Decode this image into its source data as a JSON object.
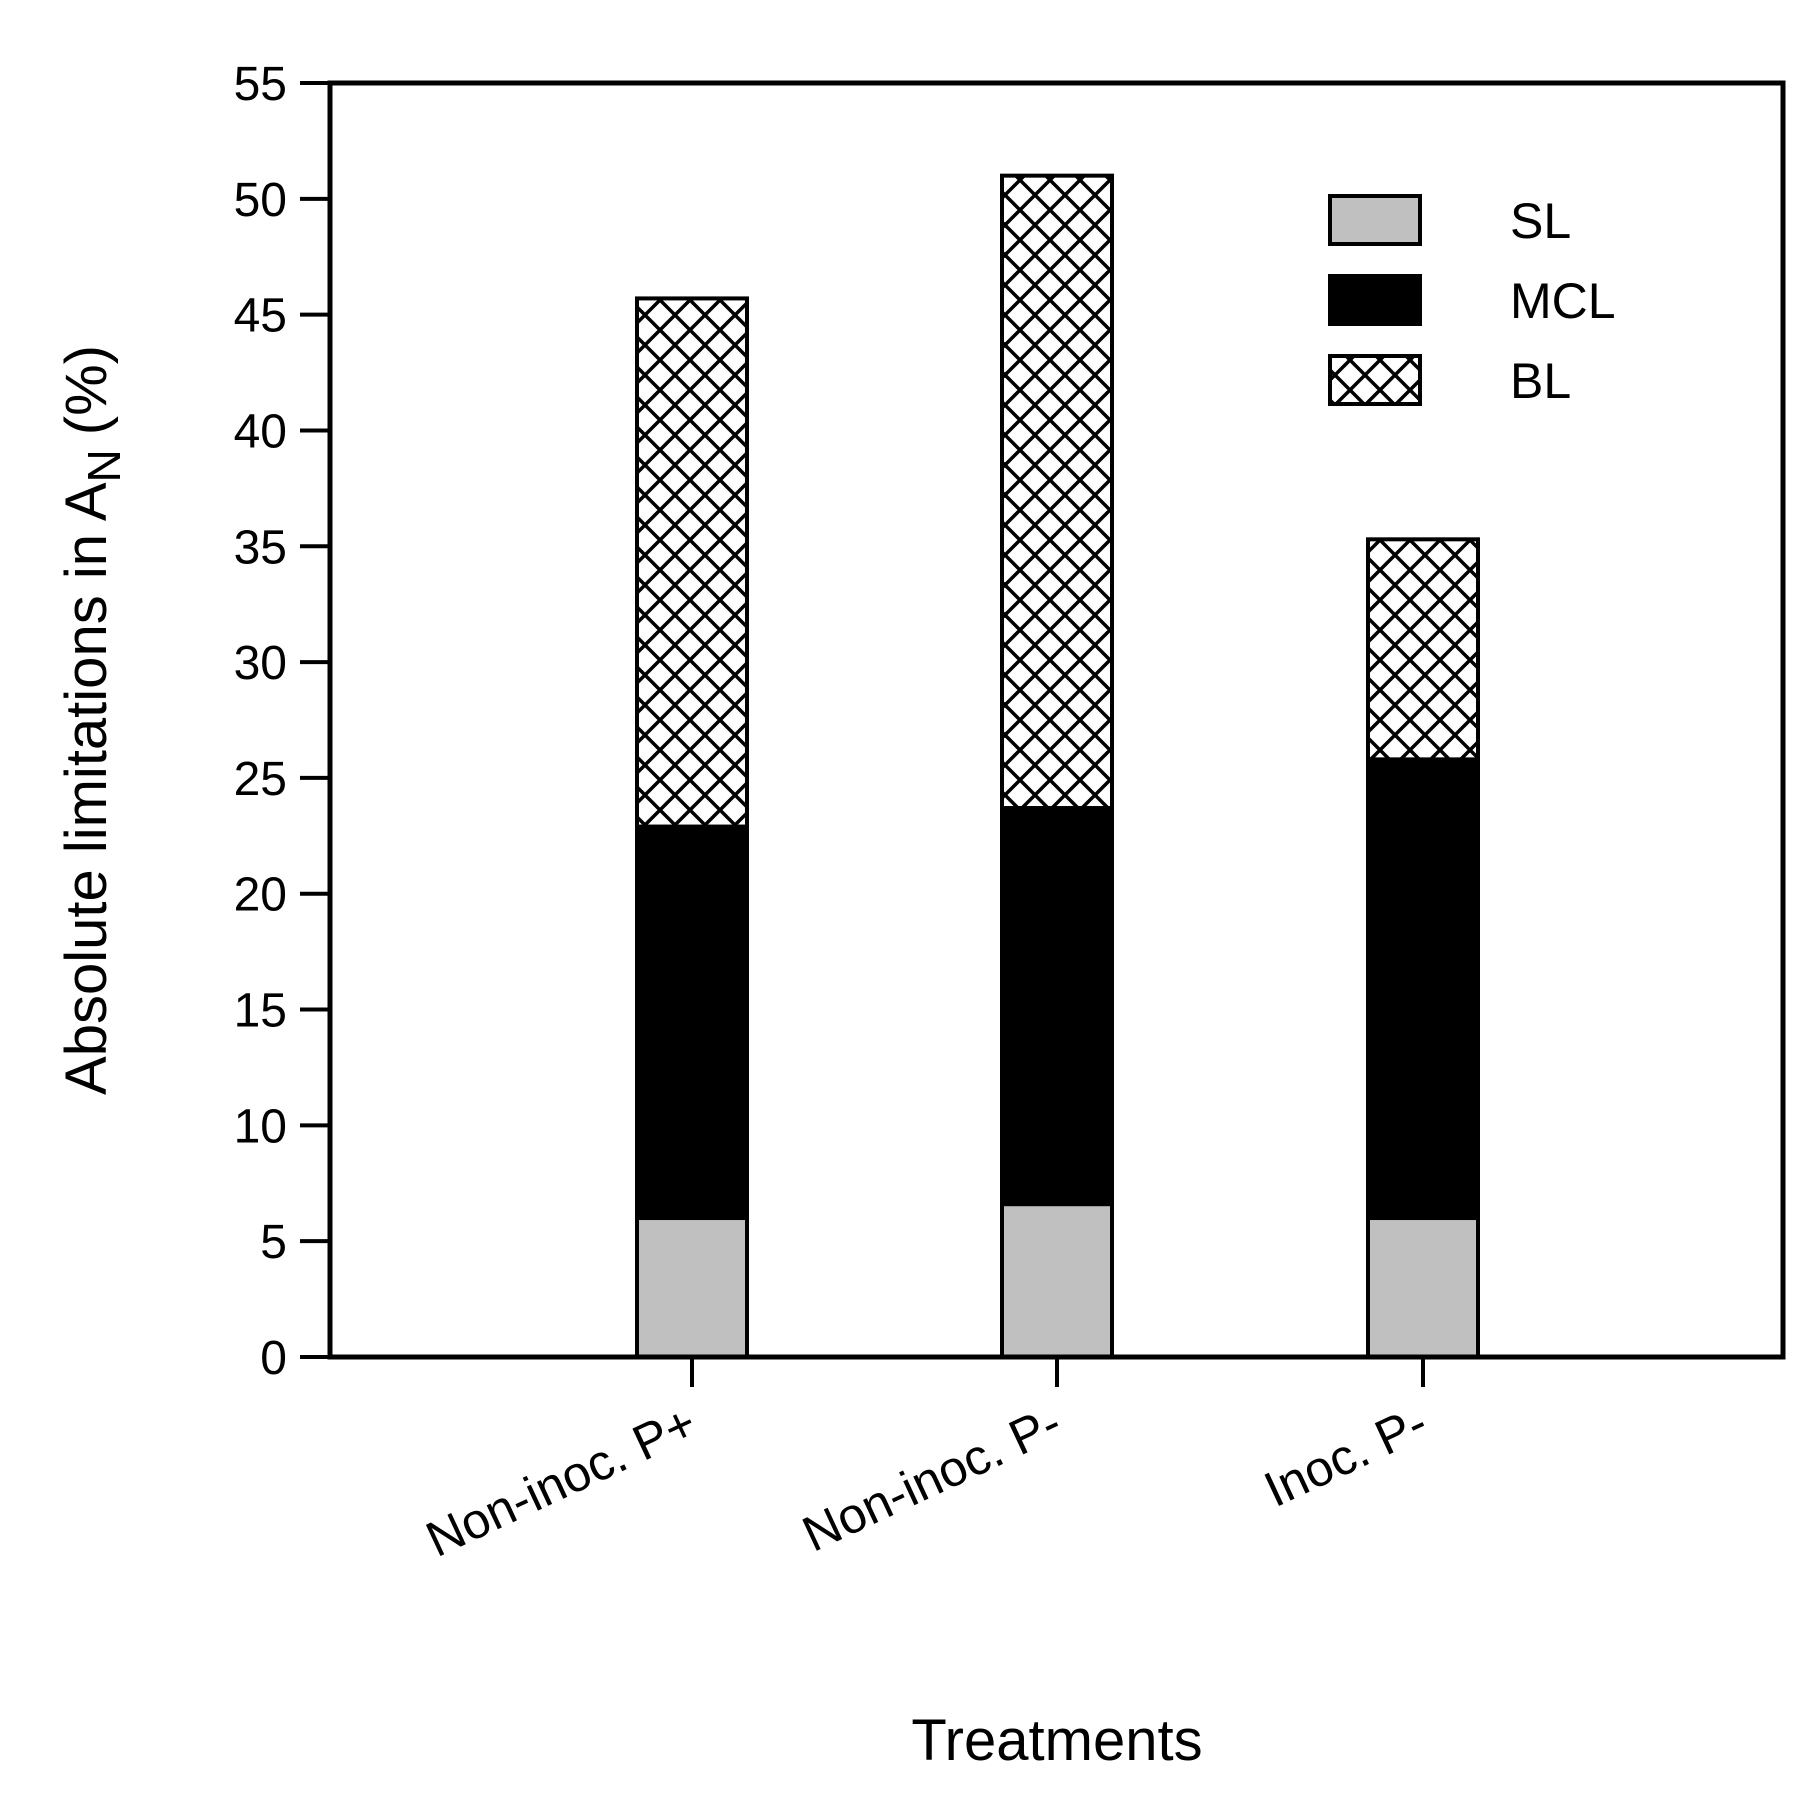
{
  "chart_data": {
    "type": "bar",
    "stacked": true,
    "title": "",
    "xlabel": "Treatments",
    "ylabel": "Absolute limitations in A",
    "ylabel_subscript": "N",
    "ylabel_unit": "(%)",
    "ylim": [
      0,
      55
    ],
    "yticks": [
      0,
      5,
      10,
      15,
      20,
      25,
      30,
      35,
      40,
      45,
      50,
      55
    ],
    "grid": false,
    "legend_position": "top-right",
    "categories": [
      "Non-inoc. P+",
      "Non-inoc. P-",
      "Inoc. P-"
    ],
    "series": [
      {
        "name": "SL",
        "fill": "#c0c0c0",
        "pattern": "solid",
        "values": [
          6.0,
          6.6,
          6.0
        ]
      },
      {
        "name": "MCL",
        "fill": "#000000",
        "pattern": "solid",
        "values": [
          16.9,
          17.1,
          19.8
        ]
      },
      {
        "name": "BL",
        "fill": "#ffffff",
        "pattern": "crosshatch",
        "values": [
          22.8,
          27.3,
          9.5
        ]
      }
    ]
  }
}
